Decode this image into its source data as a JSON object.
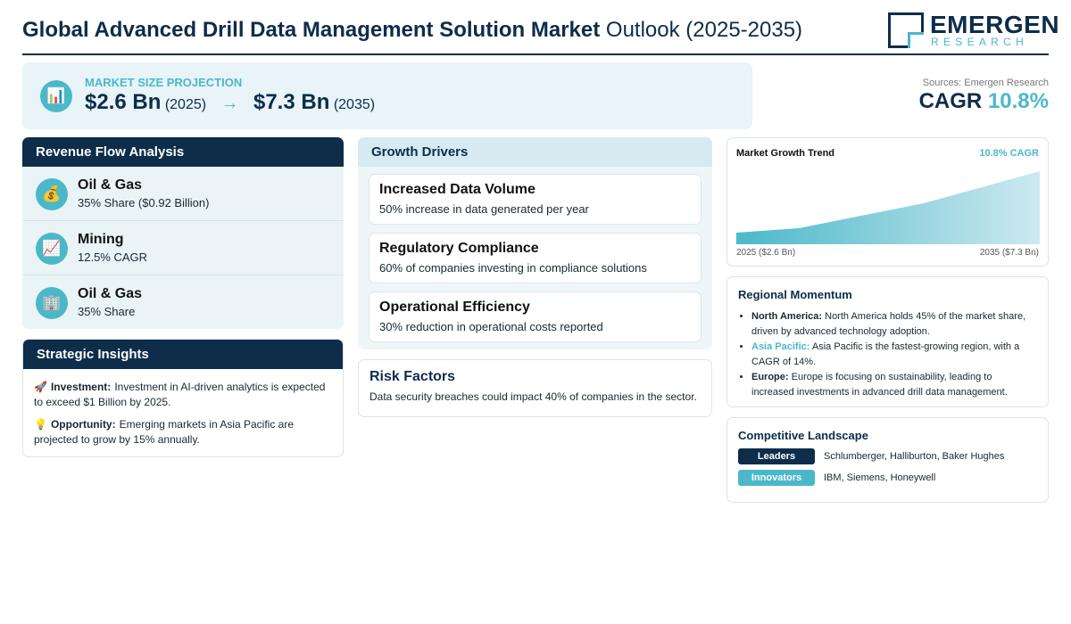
{
  "header": {
    "title_bold": "Global Advanced Drill Data Management Solution Market",
    "title_rest": "Outlook (2025-2035)",
    "logo_top": "EMERGEN",
    "logo_bottom": "RESEARCH"
  },
  "projection": {
    "icon": "📊",
    "label": "MARKET SIZE PROJECTION",
    "start_value": "$2.6 Bn",
    "start_year": "(2025)",
    "arrow": "→",
    "end_value": "$7.3 Bn",
    "end_year": "(2035)"
  },
  "summary": {
    "sources": "Sources: Emergen Research",
    "cagr_label": "CAGR",
    "cagr_value": "10.8%"
  },
  "revenue": {
    "title": "Revenue Flow Analysis",
    "items": [
      {
        "icon": "💰",
        "name": "Oil & Gas",
        "detail": "35% Share ($0.92 Billion)"
      },
      {
        "icon": "📈",
        "name": "Mining",
        "detail": "12.5% CAGR"
      },
      {
        "icon": "🏢",
        "name": "Oil & Gas",
        "detail": "35% Share"
      }
    ]
  },
  "insights": {
    "title": "Strategic Insights",
    "items": [
      {
        "icon": "🚀",
        "label": "Investment:",
        "text": "Investment in AI-driven analytics is expected to exceed $1 Billion by 2025."
      },
      {
        "icon": "💡",
        "label": "Opportunity:",
        "text": "Emerging markets in Asia Pacific are projected to grow by 15% annually."
      }
    ]
  },
  "drivers": {
    "title": "Growth Drivers",
    "items": [
      {
        "title": "Increased Data Volume",
        "text": "50% increase in data generated per year"
      },
      {
        "title": "Regulatory Compliance",
        "text": "60% of companies investing in compliance solutions"
      },
      {
        "title": "Operational Efficiency",
        "text": "30% reduction in operational costs reported"
      }
    ]
  },
  "risk": {
    "title": "Risk Factors",
    "text": "Data security breaches could impact 40% of companies in the sector."
  },
  "trend": {
    "title": "Market Growth Trend",
    "badge": "10.8% CAGR",
    "start_label": "2025 ($2.6 Bn)",
    "end_label": "2035 ($7.3 Bn)"
  },
  "regional": {
    "title": "Regional Momentum",
    "items": [
      {
        "region": "North America:",
        "text": "North America holds 45% of the market share, driven by advanced technology adoption."
      },
      {
        "region": "Asia Pacific:",
        "text": "Asia Pacific is the fastest-growing region, with a CAGR of 14%."
      },
      {
        "region": "Europe:",
        "text": "Europe is focusing on sustainability, leading to increased investments in advanced drill data management."
      }
    ]
  },
  "competitive": {
    "title": "Competitive Landscape",
    "rows": [
      {
        "tag": "Leaders",
        "companies": "Schlumberger, Halliburton, Baker Hughes"
      },
      {
        "tag": "Innovators",
        "companies": "IBM, Siemens, Honeywell"
      }
    ]
  }
}
